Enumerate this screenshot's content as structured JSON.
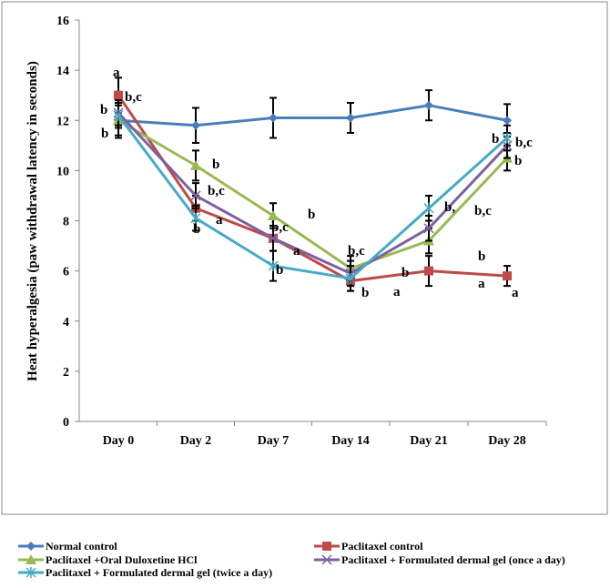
{
  "chart_data": {
    "type": "line",
    "title": "",
    "xlabel": "",
    "ylabel": "Heat hyperalgesia (paw withdrawal latency in seconds)",
    "ylim": [
      0,
      16
    ],
    "yticks": [
      "0",
      "2",
      "4",
      "6",
      "8",
      "10",
      "12",
      "14",
      "16"
    ],
    "categories": [
      "Day 0",
      "Day 2",
      "Day 7",
      "Day 14",
      "Day 21",
      "Day 28"
    ],
    "grid": false,
    "legend_position": "bottom",
    "series": [
      {
        "name": "Normal control",
        "color": "#4a7ebb",
        "marker": "diamond",
        "values": [
          12.0,
          11.8,
          12.1,
          12.1,
          12.6,
          12.0
        ],
        "errors": [
          0.7,
          0.7,
          0.8,
          0.6,
          0.6,
          0.65
        ]
      },
      {
        "name": "Paclitaxel control",
        "color": "#be4b48",
        "marker": "square",
        "values": [
          13.0,
          8.5,
          7.3,
          5.6,
          6.0,
          5.8
        ],
        "errors": [
          0.7,
          0.5,
          0.5,
          0.4,
          0.6,
          0.4
        ]
      },
      {
        "name": "Paclitaxel +Oral Duloxetine HCl",
        "color": "#98b954",
        "marker": "triangle",
        "values": [
          12.0,
          10.2,
          8.2,
          6.1,
          7.2,
          10.5
        ],
        "errors": [
          0.6,
          0.6,
          0.5,
          0.5,
          0.5,
          0.5
        ]
      },
      {
        "name": "Paclitaxel + Formulated dermal gel (once a day)",
        "color": "#7d60a0",
        "marker": "x",
        "values": [
          12.3,
          9.0,
          7.3,
          5.9,
          7.7,
          11.0
        ],
        "errors": [
          0.5,
          0.5,
          0.5,
          0.5,
          0.5,
          0.5
        ]
      },
      {
        "name": "Paclitaxel + Formulated dermal gel (twice a day)",
        "color": "#46aac5",
        "marker": "star",
        "values": [
          12.2,
          8.1,
          6.2,
          5.7,
          8.5,
          11.3
        ],
        "errors": [
          0.5,
          0.5,
          0.6,
          0.5,
          0.5,
          0.5
        ]
      }
    ],
    "annotations": [
      "a",
      "b,c",
      "b",
      "b",
      "b",
      "b,c",
      "a",
      "b",
      "b",
      "b,c",
      "a",
      "b",
      "b,c",
      "b",
      "b",
      "a",
      "b,",
      "b,c",
      "b",
      "a",
      "b",
      "b,c",
      "b",
      "a"
    ]
  }
}
